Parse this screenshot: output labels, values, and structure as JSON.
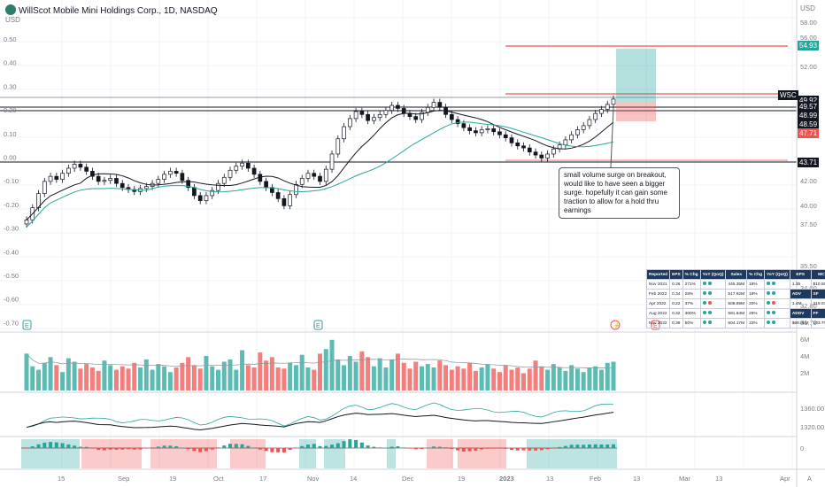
{
  "header": {
    "title": "WillScot Mobile Mini Holdings Corp., 1D, NASDAQ",
    "currency_left": "USD",
    "currency_right": "USD"
  },
  "left_axis": [
    "0.50",
    "0.40",
    "0.30",
    "0.20",
    "0.10",
    "0.00",
    "-0.10",
    "-0.20",
    "-0.30",
    "-0.40",
    "-0.50",
    "-0.60",
    "-0.70"
  ],
  "right_axis": [
    "58.00",
    "56.00",
    "52.00",
    "46.00",
    "44.00",
    "42.00",
    "40.00",
    "37.50",
    "35.50",
    "34.00",
    "32.80",
    "31.70"
  ],
  "price_labels": [
    {
      "text": "54.93",
      "bg": "#26a69a"
    },
    {
      "text": "WSC",
      "bg": "#131722"
    },
    {
      "text": "49.92",
      "bg": "#131722"
    },
    {
      "text": "49.57",
      "bg": "#131722"
    },
    {
      "text": "48.99",
      "bg": "#131722"
    },
    {
      "text": "48.59",
      "bg": "#131722"
    },
    {
      "text": "47.71",
      "bg": "#ef5350"
    },
    {
      "text": "43.71",
      "bg": "#131722"
    }
  ],
  "volume_axis": [
    "6M",
    "4M",
    "2M"
  ],
  "indicator_axis": [
    "1360.00",
    "1320.00"
  ],
  "osc_axis": [
    "0"
  ],
  "time_axis": [
    "15",
    "Sep",
    "19",
    "Oct",
    "17",
    "Nov",
    "14",
    "Dec",
    "19",
    "2023",
    "13",
    "Feb",
    "13",
    "Mar",
    "13",
    "Apr"
  ],
  "annotation": "small volume surge on breakout, would like to have seen a bigger surge. hopefully it can gain some traction to allow for a hold thru earnings",
  "financials": {
    "headers": [
      "Reported",
      "EPS",
      "% Chg",
      "YoY (QoQ)",
      "Sales",
      "% Chg",
      "YoY (QoQ)",
      "EPS",
      "MC"
    ],
    "rows": [
      [
        "Nov 2021",
        "0.26",
        "271%",
        "",
        "445.35M",
        "18%",
        "",
        "1.35",
        "$10.55B"
      ],
      [
        "Feb 2022",
        "0.34",
        "28%",
        "",
        "517.92M",
        "18%",
        "",
        "ADV",
        "SF"
      ],
      [
        "Apr 2022",
        "0.22",
        "37%",
        "",
        "508.89M",
        "20%",
        "",
        "1.4M",
        "219.03M"
      ],
      [
        "Aug 2022",
        "0.32",
        "300%",
        "",
        "581.64M",
        "26%",
        "",
        "ADDV",
        "FF"
      ],
      [
        "Nov 2022",
        "0.39",
        "50%",
        "",
        "604.17M",
        "22%",
        "",
        "$69.85M",
        "103.7%"
      ]
    ],
    "dot_colors": [
      [
        "#26a69a",
        "#26a69a",
        "#26a69a",
        "#26a69a"
      ],
      [
        "#26a69a",
        "#26a69a",
        "#26a69a",
        "#26a69a"
      ],
      [
        "#26a69a",
        "#ef5350",
        "#26a69a",
        "#ef5350"
      ],
      [
        "#26a69a",
        "#26a69a",
        "#26a69a",
        "#26a69a"
      ],
      [
        "#26a69a",
        "#26a69a",
        "#26a69a",
        "#26a69a"
      ]
    ]
  },
  "colors": {
    "up": "#26a69a",
    "down": "#ef5350",
    "ma_fast": "#131722",
    "ma_slow": "#26a69a",
    "level": "#131722",
    "target": "#ef5350"
  },
  "chart_data": {
    "type": "candlestick",
    "title": "WillScot Mobile Mini Holdings Corp., 1D, NASDAQ",
    "levels": [
      49.92,
      49.57,
      48.99,
      43.71
    ],
    "target_line": 54.93,
    "position": {
      "entry": 48.59,
      "target": 54.93,
      "stop": 47.71
    },
    "close_series": [
      38.0,
      39.2,
      40.6,
      41.8,
      42.3,
      42.0,
      42.6,
      43.1,
      43.5,
      43.2,
      42.8,
      42.3,
      41.8,
      41.9,
      42.1,
      41.6,
      41.2,
      41.0,
      40.8,
      41.1,
      41.3,
      41.6,
      42.0,
      42.5,
      42.8,
      42.6,
      41.9,
      41.2,
      40.4,
      39.9,
      40.4,
      40.9,
      41.6,
      42.2,
      42.9,
      43.3,
      43.6,
      43.1,
      42.5,
      41.8,
      41.2,
      40.7,
      40.1,
      39.4,
      40.5,
      41.5,
      42.1,
      42.6,
      42.3,
      41.8,
      43.0,
      44.5,
      46.0,
      47.2,
      48.0,
      48.7,
      48.4,
      47.8,
      48.1,
      48.4,
      48.8,
      49.3,
      49.0,
      48.5,
      48.2,
      47.9,
      48.6,
      49.1,
      49.6,
      49.1,
      48.4,
      47.9,
      47.5,
      47.1,
      46.8,
      46.6,
      46.9,
      47.0,
      46.7,
      46.4,
      46.1,
      45.6,
      45.3,
      45.1,
      44.7,
      44.4,
      44.1,
      44.5,
      45.0,
      45.4,
      45.9,
      46.4,
      46.9,
      47.3,
      47.9,
      48.5,
      48.9,
      49.4,
      49.92
    ],
    "volume_millions": [
      3.2,
      2.1,
      1.8,
      2.4,
      2.9,
      2.2,
      1.6,
      2.8,
      2.5,
      1.9,
      2.3,
      2.0,
      1.7,
      2.6,
      2.2,
      1.8,
      2.1,
      1.9,
      2.4,
      2.0,
      2.7,
      1.8,
      2.3,
      2.1,
      1.6,
      2.0,
      2.4,
      2.9,
      2.2,
      1.9,
      3.0,
      2.1,
      1.8,
      2.5,
      2.7,
      1.8,
      3.5,
      2.2,
      2.0,
      3.3,
      2.6,
      2.9,
      2.0,
      1.9,
      2.4,
      2.2,
      3.1,
      2.0,
      1.8,
      3.2,
      3.6,
      4.4,
      2.7,
      2.2,
      3.0,
      2.5,
      3.4,
      2.9,
      2.1,
      2.8,
      2.0,
      2.7,
      3.2,
      2.4,
      1.9,
      2.5,
      2.1,
      2.3,
      2.0,
      2.6,
      2.2,
      1.8,
      2.1,
      1.9,
      2.4,
      1.7,
      2.0,
      2.3,
      1.9,
      1.6,
      2.2,
      1.8,
      2.0,
      1.5,
      1.9,
      2.6,
      2.1,
      1.8,
      2.3,
      2.0,
      1.7,
      2.2,
      1.9,
      1.6,
      2.0,
      2.1,
      1.8,
      2.4,
      2.5
    ]
  }
}
